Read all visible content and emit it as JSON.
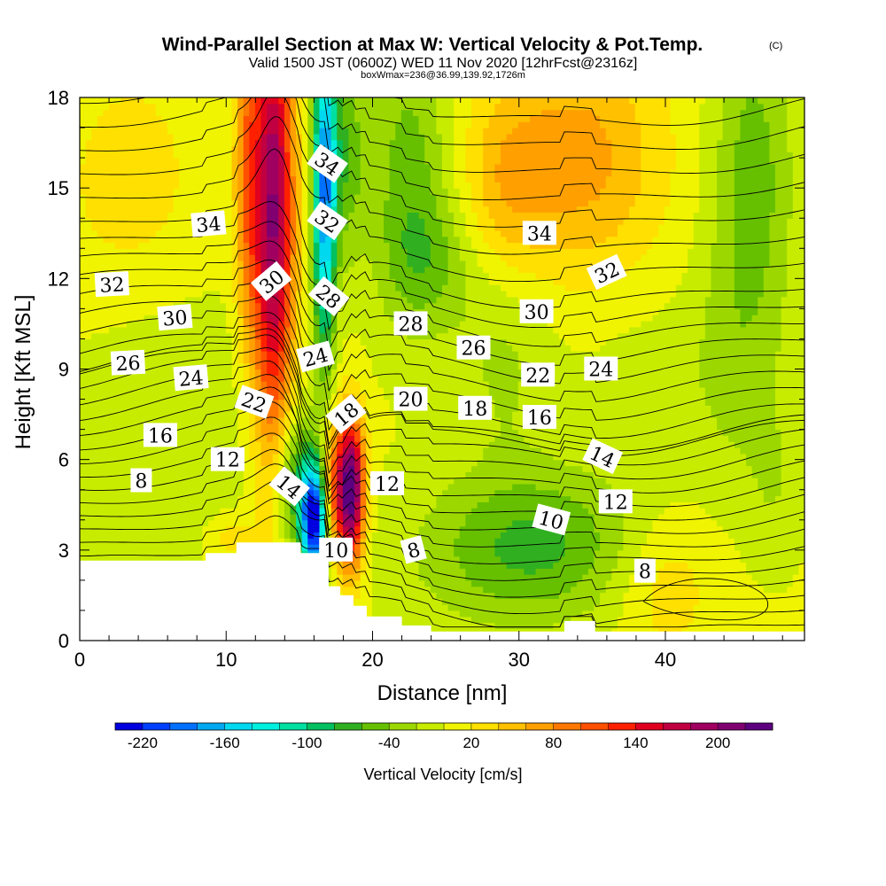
{
  "chart_data": {
    "type": "heatmap",
    "title": "Wind-Parallel Section at Max W: Vertical Velocity & Pot.Temp.",
    "title_mark": "(C)",
    "subtitle": "Valid 1500 JST (0600Z) WED 11 Nov 2020 [12hrFcst@2316z]",
    "subtitle2": "boxWmax=236@36.99,139.92,1726m",
    "xlabel": "Distance [nm]",
    "ylabel": "Height [Kft MSL]",
    "xlim": [
      0,
      49.5
    ],
    "ylim": [
      0,
      18
    ],
    "x_ticks": [
      0,
      10,
      20,
      30,
      40
    ],
    "y_ticks": [
      0,
      3,
      6,
      9,
      12,
      15,
      18
    ],
    "colorbar": {
      "label": "Vertical Velocity [cm/s]",
      "min": -240,
      "max": 240,
      "step": 20,
      "tick_labels": [
        -220,
        -160,
        -100,
        -40,
        20,
        80,
        140,
        200
      ],
      "colors": [
        "#0000e0",
        "#0040ff",
        "#0070ff",
        "#00a8f0",
        "#00d8f0",
        "#00f0e0",
        "#00e0a0",
        "#00c060",
        "#30b020",
        "#66c000",
        "#9cd800",
        "#c8ec00",
        "#f0f400",
        "#ffe000",
        "#ffc000",
        "#ffa000",
        "#ff7800",
        "#ff5000",
        "#ff2000",
        "#e00020",
        "#c00040",
        "#a00060",
        "#800070",
        "#5c0080"
      ]
    },
    "terrain": [
      [
        0,
        2.65
      ],
      [
        8.6,
        2.65
      ],
      [
        8.6,
        2.9
      ],
      [
        10.7,
        2.9
      ],
      [
        10.7,
        3.25
      ],
      [
        15.1,
        3.25
      ],
      [
        15.1,
        2.9
      ],
      [
        17.0,
        2.9
      ],
      [
        17.0,
        1.8
      ],
      [
        17.8,
        1.8
      ],
      [
        17.8,
        1.5
      ],
      [
        18.7,
        1.5
      ],
      [
        18.7,
        1.15
      ],
      [
        19.6,
        1.15
      ],
      [
        19.6,
        0.8
      ],
      [
        22.0,
        0.8
      ],
      [
        22.0,
        0.5
      ],
      [
        24.0,
        0.5
      ],
      [
        24.0,
        0.3
      ],
      [
        33.1,
        0.3
      ],
      [
        33.1,
        0.65
      ],
      [
        35.2,
        0.65
      ],
      [
        35.2,
        0.3
      ],
      [
        49.5,
        0.3
      ]
    ],
    "vertical_velocity_field": {
      "background": 5,
      "features": [
        {
          "x": 13.2,
          "y": 14.0,
          "sx": 1.0,
          "sy": 5.5,
          "w": 200
        },
        {
          "x": 11.4,
          "y": 15.5,
          "sx": 0.6,
          "sy": 4.0,
          "w": 70
        },
        {
          "x": 16.7,
          "y": 14.8,
          "sx": 0.55,
          "sy": 3.8,
          "w": -175
        },
        {
          "x": 18.0,
          "y": 16.2,
          "sx": 1.0,
          "sy": 2.5,
          "w": -60
        },
        {
          "x": 18.5,
          "y": 5.0,
          "sx": 0.65,
          "sy": 1.7,
          "w": 240
        },
        {
          "x": 17.2,
          "y": 5.2,
          "sx": 0.6,
          "sy": 1.4,
          "w": 90
        },
        {
          "x": 16.0,
          "y": 4.0,
          "sx": 0.6,
          "sy": 1.3,
          "w": -230
        },
        {
          "x": 14.8,
          "y": 5.2,
          "sx": 1.1,
          "sy": 1.6,
          "w": -80
        },
        {
          "x": 22.5,
          "y": 15.5,
          "sx": 2.0,
          "sy": 3.5,
          "w": -55
        },
        {
          "x": 24.0,
          "y": 12.5,
          "sx": 2.2,
          "sy": 1.5,
          "w": -35
        },
        {
          "x": 34.0,
          "y": 16.0,
          "sx": 4.0,
          "sy": 2.8,
          "w": 65
        },
        {
          "x": 29.0,
          "y": 15.0,
          "sx": 2.0,
          "sy": 2.2,
          "w": 35
        },
        {
          "x": 46.0,
          "y": 15.5,
          "sx": 2.0,
          "sy": 4.0,
          "w": -55
        },
        {
          "x": 6.0,
          "y": 7.0,
          "sx": 5.0,
          "sy": 3.5,
          "w": -25
        },
        {
          "x": 29.0,
          "y": 9.5,
          "sx": 2.5,
          "sy": 2.5,
          "w": -30
        },
        {
          "x": 32.0,
          "y": 3.2,
          "sx": 4.5,
          "sy": 1.8,
          "w": -55
        },
        {
          "x": 27.0,
          "y": 2.8,
          "sx": 5.0,
          "sy": 2.0,
          "w": -25
        },
        {
          "x": 40.0,
          "y": 1.8,
          "sx": 2.3,
          "sy": 1.6,
          "w": 30
        },
        {
          "x": 44.5,
          "y": 9.0,
          "sx": 2.5,
          "sy": 3.0,
          "w": -25
        },
        {
          "x": 38.0,
          "y": 8.5,
          "sx": 3.0,
          "sy": 2.0,
          "w": -15
        },
        {
          "x": 3.5,
          "y": 15.0,
          "sx": 3.5,
          "sy": 3.0,
          "w": 25
        },
        {
          "x": 10.3,
          "y": 3.4,
          "sx": 1.2,
          "sy": 0.6,
          "w": 30
        },
        {
          "x": 47.5,
          "y": 5.0,
          "sx": 1.5,
          "sy": 2.0,
          "w": -20
        }
      ]
    },
    "theta_contours": {
      "levels": [
        8,
        10,
        12,
        14,
        16,
        18,
        20,
        22,
        24,
        26,
        28,
        30,
        32,
        34
      ],
      "note": "potential temperature contour lines (labels as shown)"
    },
    "contour_labels": [
      {
        "text": "34",
        "x": 16.9,
        "y": 15.8,
        "rot": 35
      },
      {
        "text": "34",
        "x": 8.8,
        "y": 13.8,
        "rot": -5
      },
      {
        "text": "32",
        "x": 16.9,
        "y": 13.9,
        "rot": 35
      },
      {
        "text": "30",
        "x": 13.1,
        "y": 11.9,
        "rot": -40
      },
      {
        "text": "28",
        "x": 17.0,
        "y": 11.4,
        "rot": 40
      },
      {
        "text": "32",
        "x": 2.2,
        "y": 11.8,
        "rot": -3
      },
      {
        "text": "30",
        "x": 6.5,
        "y": 10.7,
        "rot": -5
      },
      {
        "text": "26",
        "x": 3.3,
        "y": 9.2,
        "rot": -3
      },
      {
        "text": "24",
        "x": 7.6,
        "y": 8.7,
        "rot": -5
      },
      {
        "text": "24",
        "x": 16.1,
        "y": 9.4,
        "rot": -15
      },
      {
        "text": "22",
        "x": 11.9,
        "y": 7.9,
        "rot": 20
      },
      {
        "text": "16",
        "x": 5.5,
        "y": 6.8,
        "rot": 0
      },
      {
        "text": "12",
        "x": 10.1,
        "y": 6.0,
        "rot": 0
      },
      {
        "text": "8",
        "x": 4.2,
        "y": 5.3,
        "rot": 0
      },
      {
        "text": "14",
        "x": 14.3,
        "y": 5.1,
        "rot": 40
      },
      {
        "text": "18",
        "x": 18.2,
        "y": 7.5,
        "rot": -40
      },
      {
        "text": "10",
        "x": 17.5,
        "y": 3.0,
        "rot": 0
      },
      {
        "text": "12",
        "x": 21.0,
        "y": 5.2,
        "rot": 0
      },
      {
        "text": "8",
        "x": 22.8,
        "y": 3.0,
        "rot": -15
      },
      {
        "text": "28",
        "x": 22.6,
        "y": 10.5,
        "rot": 0
      },
      {
        "text": "20",
        "x": 22.6,
        "y": 8.0,
        "rot": 0
      },
      {
        "text": "26",
        "x": 26.9,
        "y": 9.7,
        "rot": 0
      },
      {
        "text": "18",
        "x": 27.0,
        "y": 7.7,
        "rot": 0
      },
      {
        "text": "34",
        "x": 31.4,
        "y": 13.5,
        "rot": 0
      },
      {
        "text": "30",
        "x": 31.2,
        "y": 10.9,
        "rot": 0
      },
      {
        "text": "22",
        "x": 31.3,
        "y": 8.8,
        "rot": 0
      },
      {
        "text": "16",
        "x": 31.4,
        "y": 7.4,
        "rot": 0
      },
      {
        "text": "24",
        "x": 35.6,
        "y": 9.0,
        "rot": 0
      },
      {
        "text": "32",
        "x": 36.0,
        "y": 12.2,
        "rot": -25
      },
      {
        "text": "14",
        "x": 35.7,
        "y": 6.1,
        "rot": 25
      },
      {
        "text": "12",
        "x": 36.6,
        "y": 4.6,
        "rot": 0
      },
      {
        "text": "10",
        "x": 32.2,
        "y": 4.0,
        "rot": 15
      },
      {
        "text": "8",
        "x": 38.6,
        "y": 2.3,
        "rot": 0
      }
    ]
  }
}
